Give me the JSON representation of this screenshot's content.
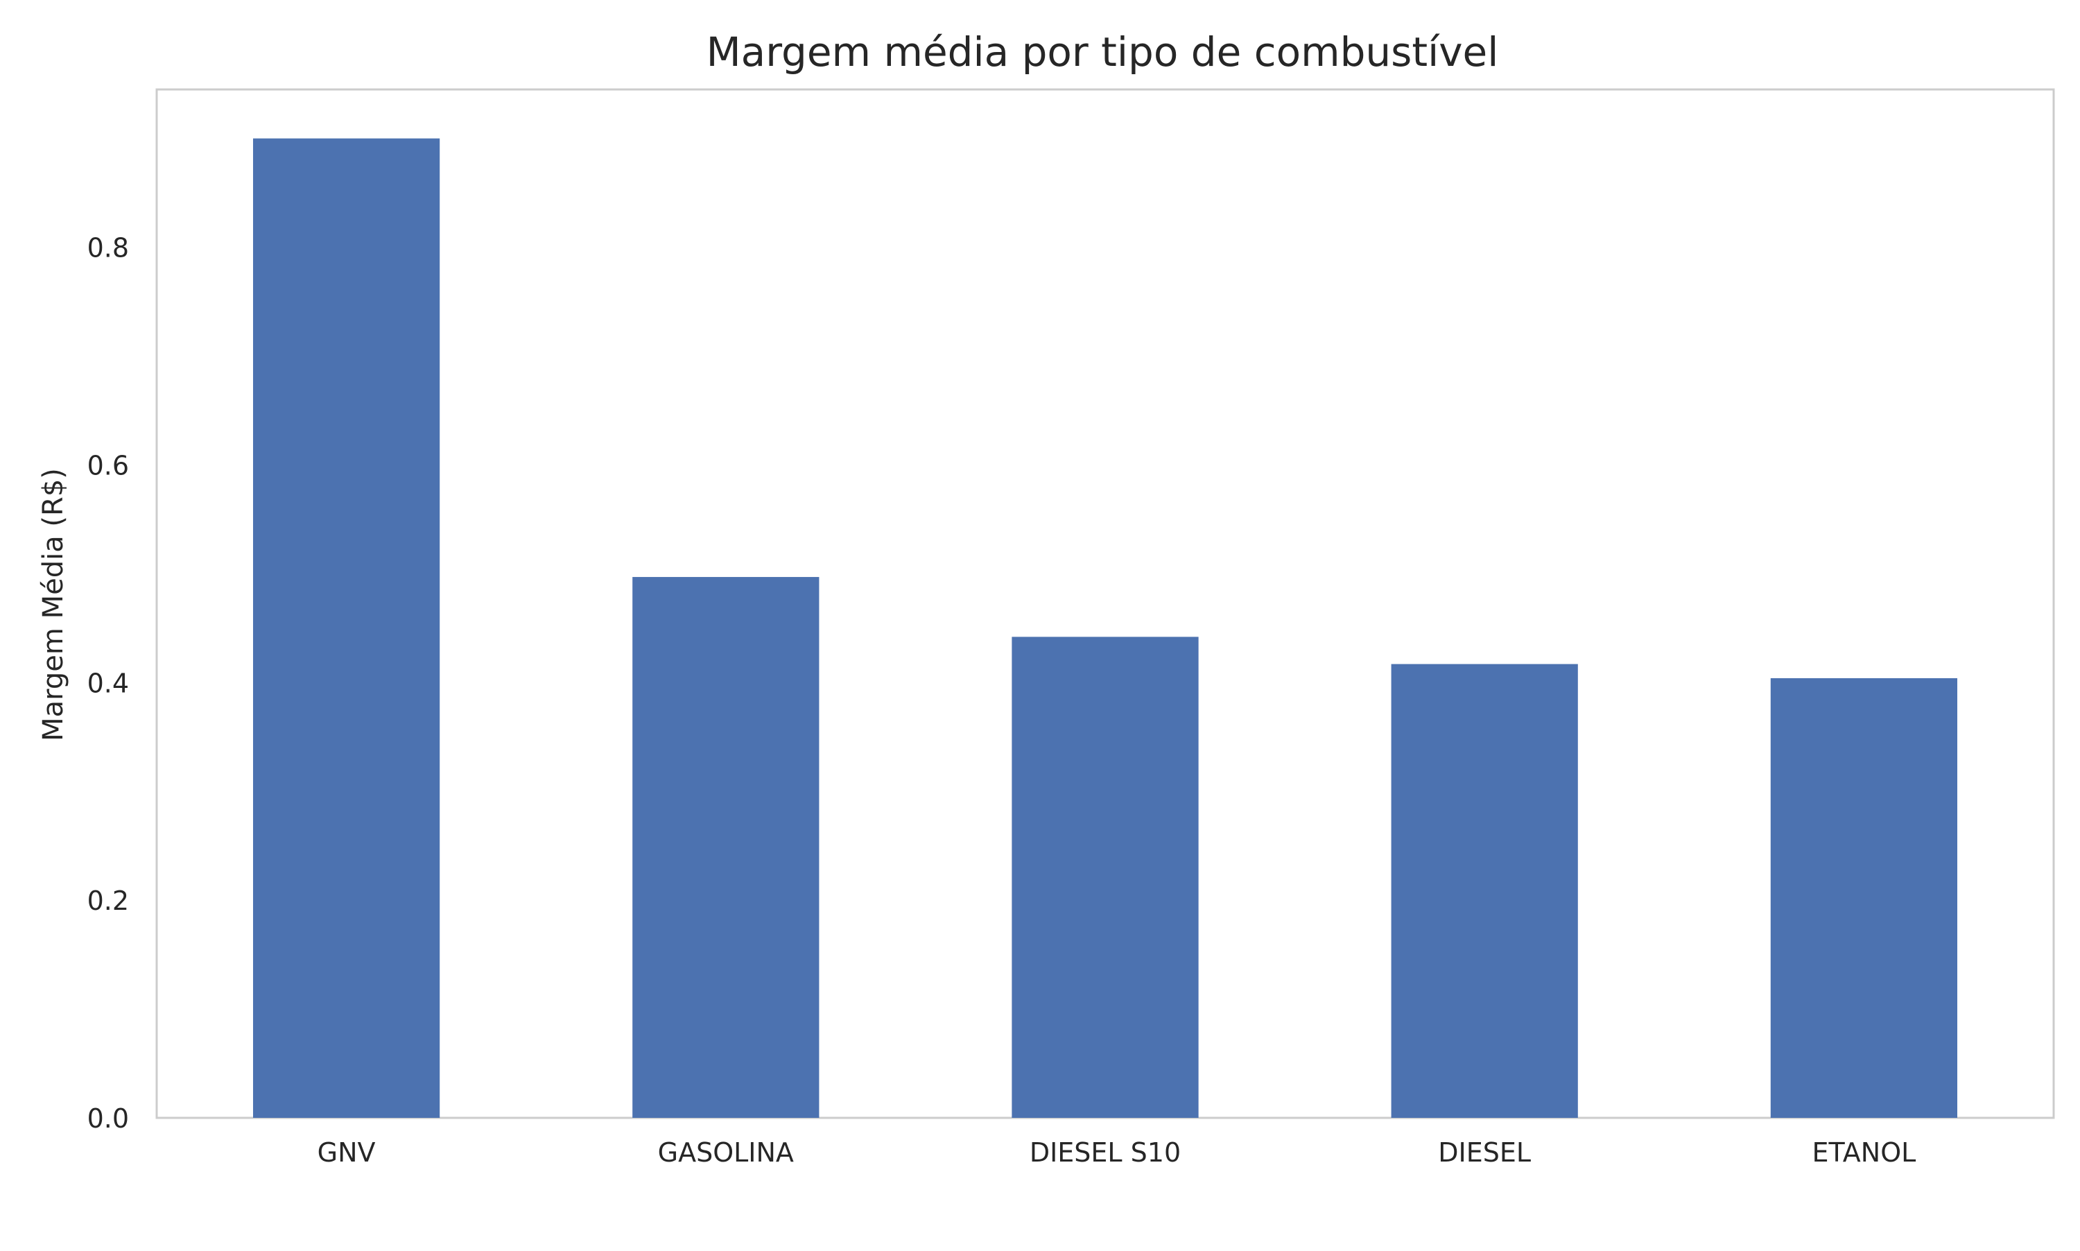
{
  "chart_data": {
    "type": "bar",
    "title": "Margem média por tipo de combustível",
    "xlabel": "",
    "ylabel": "Margem Média (R$)",
    "categories": [
      "GNV",
      "GASOLINA",
      "DIESEL S10",
      "DIESEL",
      "ETANOL"
    ],
    "values": [
      0.9,
      0.497,
      0.442,
      0.417,
      0.404
    ],
    "ylim": [
      0,
      0.945
    ],
    "yticks": [
      "0.0",
      "0.2",
      "0.4",
      "0.6",
      "0.8"
    ],
    "grid": false,
    "legend": "none",
    "colors": {
      "bar": "#4c72b0",
      "frame": "#cccccc",
      "text": "#262626",
      "background": "#ffffff"
    }
  }
}
